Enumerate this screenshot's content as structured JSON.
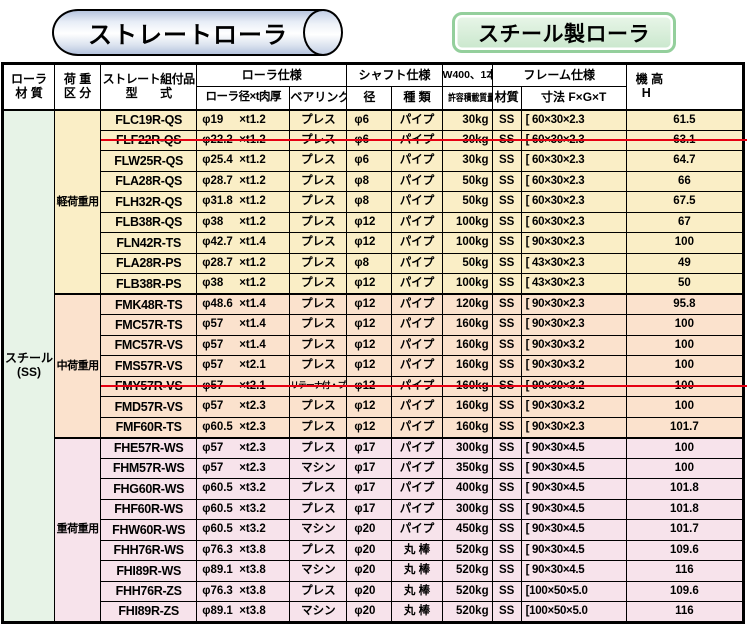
{
  "banner": {
    "straight_roller_label": "ストレートローラ",
    "steel_roller_label": "スチール製ローラ"
  },
  "table": {
    "headers": {
      "roller_material": [
        "ローラ",
        "材 質"
      ],
      "load_class": [
        "荷 重",
        "区 分"
      ],
      "model": [
        "ストレート組付品",
        "型　　式"
      ],
      "roller_spec": "ローラ仕様",
      "roller_dia": "ローラ径×t肉厚",
      "bearing": "ベアリング",
      "shaft_spec": "シャフト仕様",
      "shaft_dia": "径",
      "shaft_type": "種 類",
      "load_capacity": [
        "W400、1本",
        "許容積載質量"
      ],
      "frame_spec": "フレーム仕様",
      "frame_material": "材質",
      "frame_dim": "寸法 F×G×T",
      "machine_height": [
        "機 高",
        "H"
      ]
    },
    "material": {
      "line1": "スチール",
      "line2": "(SS)"
    },
    "groups": [
      {
        "load_class": "軽荷重用",
        "rows": [
          {
            "model": "FLC19R-QS",
            "dia": "φ19",
            "thick": "×t1.2",
            "bearing": "プレス",
            "shaft_dia": "φ6",
            "shaft_type": "パイプ",
            "load": "30kg",
            "frame_mat": "SS",
            "frame_dim": "[ 60×30×2.3",
            "height": "61.5"
          },
          {
            "model": "FLF22R-QS",
            "dia": "φ22.2",
            "thick": "×t1.2",
            "bearing": "プレス",
            "shaft_dia": "φ6",
            "shaft_type": "パイプ",
            "load": "30kg",
            "frame_mat": "SS",
            "frame_dim": "[ 60×30×2.3",
            "height": "63.1",
            "strike": true
          },
          {
            "model": "FLW25R-QS",
            "dia": "φ25.4",
            "thick": "×t1.2",
            "bearing": "プレス",
            "shaft_dia": "φ6",
            "shaft_type": "パイプ",
            "load": "30kg",
            "frame_mat": "SS",
            "frame_dim": "[ 60×30×2.3",
            "height": "64.7"
          },
          {
            "model": "FLA28R-QS",
            "dia": "φ28.7",
            "thick": "×t1.2",
            "bearing": "プレス",
            "shaft_dia": "φ8",
            "shaft_type": "パイプ",
            "load": "50kg",
            "frame_mat": "SS",
            "frame_dim": "[ 60×30×2.3",
            "height": "66"
          },
          {
            "model": "FLH32R-QS",
            "dia": "φ31.8",
            "thick": "×t1.2",
            "bearing": "プレス",
            "shaft_dia": "φ8",
            "shaft_type": "パイプ",
            "load": "50kg",
            "frame_mat": "SS",
            "frame_dim": "[ 60×30×2.3",
            "height": "67.5"
          },
          {
            "model": "FLB38R-QS",
            "dia": "φ38",
            "thick": "×t1.2",
            "bearing": "プレス",
            "shaft_dia": "φ12",
            "shaft_type": "パイプ",
            "load": "100kg",
            "frame_mat": "SS",
            "frame_dim": "[ 60×30×2.3",
            "height": "67"
          },
          {
            "model": "FLN42R-TS",
            "dia": "φ42.7",
            "thick": "×t1.4",
            "bearing": "プレス",
            "shaft_dia": "φ12",
            "shaft_type": "パイプ",
            "load": "100kg",
            "frame_mat": "SS",
            "frame_dim": "[ 90×30×2.3",
            "height": "100"
          },
          {
            "model": "FLA28R-PS",
            "dia": "φ28.7",
            "thick": "×t1.2",
            "bearing": "プレス",
            "shaft_dia": "φ8",
            "shaft_type": "パイプ",
            "load": "50kg",
            "frame_mat": "SS",
            "frame_dim": "[ 43×30×2.3",
            "height": "49"
          },
          {
            "model": "FLB38R-PS",
            "dia": "φ38",
            "thick": "×t1.2",
            "bearing": "プレス",
            "shaft_dia": "φ12",
            "shaft_type": "パイプ",
            "load": "100kg",
            "frame_mat": "SS",
            "frame_dim": "[ 43×30×2.3",
            "height": "50"
          }
        ]
      },
      {
        "load_class": "中荷重用",
        "rows": [
          {
            "model": "FMK48R-TS",
            "dia": "φ48.6",
            "thick": "×t1.4",
            "bearing": "プレス",
            "shaft_dia": "φ12",
            "shaft_type": "パイプ",
            "load": "120kg",
            "frame_mat": "SS",
            "frame_dim": "[ 90×30×2.3",
            "height": "95.8"
          },
          {
            "model": "FMC57R-TS",
            "dia": "φ57",
            "thick": "×t1.4",
            "bearing": "プレス",
            "shaft_dia": "φ12",
            "shaft_type": "パイプ",
            "load": "160kg",
            "frame_mat": "SS",
            "frame_dim": "[ 90×30×2.3",
            "height": "100"
          },
          {
            "model": "FMC57R-VS",
            "dia": "φ57",
            "thick": "×t1.4",
            "bearing": "プレス",
            "shaft_dia": "φ12",
            "shaft_type": "パイプ",
            "load": "160kg",
            "frame_mat": "SS",
            "frame_dim": "[ 90×30×3.2",
            "height": "100"
          },
          {
            "model": "FMS57R-VS",
            "dia": "φ57",
            "thick": "×t2.1",
            "bearing": "プレス",
            "shaft_dia": "φ12",
            "shaft_type": "パイプ",
            "load": "160kg",
            "frame_mat": "SS",
            "frame_dim": "[ 90×30×3.2",
            "height": "100"
          },
          {
            "model": "FMY57R-VS",
            "dia": "φ57",
            "thick": "×t2.1",
            "bearing": "リテーナ付・プレス",
            "shaft_dia": "φ12",
            "shaft_type": "パイプ",
            "load": "160kg",
            "frame_mat": "SS",
            "frame_dim": "[ 90×30×3.2",
            "height": "100",
            "strike": true
          },
          {
            "model": "FMD57R-VS",
            "dia": "φ57",
            "thick": "×t2.3",
            "bearing": "プレス",
            "shaft_dia": "φ12",
            "shaft_type": "パイプ",
            "load": "160kg",
            "frame_mat": "SS",
            "frame_dim": "[ 90×30×3.2",
            "height": "100"
          },
          {
            "model": "FMF60R-TS",
            "dia": "φ60.5",
            "thick": "×t2.3",
            "bearing": "プレス",
            "shaft_dia": "φ12",
            "shaft_type": "パイプ",
            "load": "160kg",
            "frame_mat": "SS",
            "frame_dim": "[ 90×30×2.3",
            "height": "101.7"
          }
        ]
      },
      {
        "load_class": "重荷重用",
        "rows": [
          {
            "model": "FHE57R-WS",
            "dia": "φ57",
            "thick": "×t2.3",
            "bearing": "プレス",
            "shaft_dia": "φ17",
            "shaft_type": "パイプ",
            "load": "300kg",
            "frame_mat": "SS",
            "frame_dim": "[ 90×30×4.5",
            "height": "100"
          },
          {
            "model": "FHM57R-WS",
            "dia": "φ57",
            "thick": "×t2.3",
            "bearing": "マシン",
            "shaft_dia": "φ17",
            "shaft_type": "パイプ",
            "load": "350kg",
            "frame_mat": "SS",
            "frame_dim": "[ 90×30×4.5",
            "height": "100"
          },
          {
            "model": "FHG60R-WS",
            "dia": "φ60.5",
            "thick": "×t3.2",
            "bearing": "プレス",
            "shaft_dia": "φ17",
            "shaft_type": "パイプ",
            "load": "400kg",
            "frame_mat": "SS",
            "frame_dim": "[ 90×30×4.5",
            "height": "101.8"
          },
          {
            "model": "FHF60R-WS",
            "dia": "φ60.5",
            "thick": "×t3.2",
            "bearing": "プレス",
            "shaft_dia": "φ17",
            "shaft_type": "パイプ",
            "load": "300kg",
            "frame_mat": "SS",
            "frame_dim": "[ 90×30×4.5",
            "height": "101.8"
          },
          {
            "model": "FHW60R-WS",
            "dia": "φ60.5",
            "thick": "×t3.2",
            "bearing": "マシン",
            "shaft_dia": "φ20",
            "shaft_type": "パイプ",
            "load": "450kg",
            "frame_mat": "SS",
            "frame_dim": "[ 90×30×4.5",
            "height": "101.7"
          },
          {
            "model": "FHH76R-WS",
            "dia": "φ76.3",
            "thick": "×t3.8",
            "bearing": "プレス",
            "shaft_dia": "φ20",
            "shaft_type": "丸 棒",
            "load": "520kg",
            "frame_mat": "SS",
            "frame_dim": "[ 90×30×4.5",
            "height": "109.6"
          },
          {
            "model": "FHI89R-WS",
            "dia": "φ89.1",
            "thick": "×t3.8",
            "bearing": "マシン",
            "shaft_dia": "φ20",
            "shaft_type": "丸 棒",
            "load": "520kg",
            "frame_mat": "SS",
            "frame_dim": "[ 90×30×4.5",
            "height": "116"
          },
          {
            "model": "FHH76R-ZS",
            "dia": "φ76.3",
            "thick": "×t3.8",
            "bearing": "プレス",
            "shaft_dia": "φ20",
            "shaft_type": "丸 棒",
            "load": "520kg",
            "frame_mat": "SS",
            "frame_dim": "[100×50×5.0",
            "height": "109.6"
          },
          {
            "model": "FHI89R-ZS",
            "dia": "φ89.1",
            "thick": "×t3.8",
            "bearing": "マシン",
            "shaft_dia": "φ20",
            "shaft_type": "丸 棒",
            "load": "520kg",
            "frame_mat": "SS",
            "frame_dim": "[100×50×5.0",
            "height": "116"
          }
        ]
      }
    ]
  },
  "colors": {
    "group_light": "#faeec6",
    "group_medium": "#fbe2cd",
    "group_heavy": "#f7e3eb",
    "material_col": "#e7f3e7",
    "header_bg": "#ffffff",
    "strike_line": "#e60012",
    "badge_border": "#94cf9c",
    "badge_fill": "#c9e7cc"
  }
}
